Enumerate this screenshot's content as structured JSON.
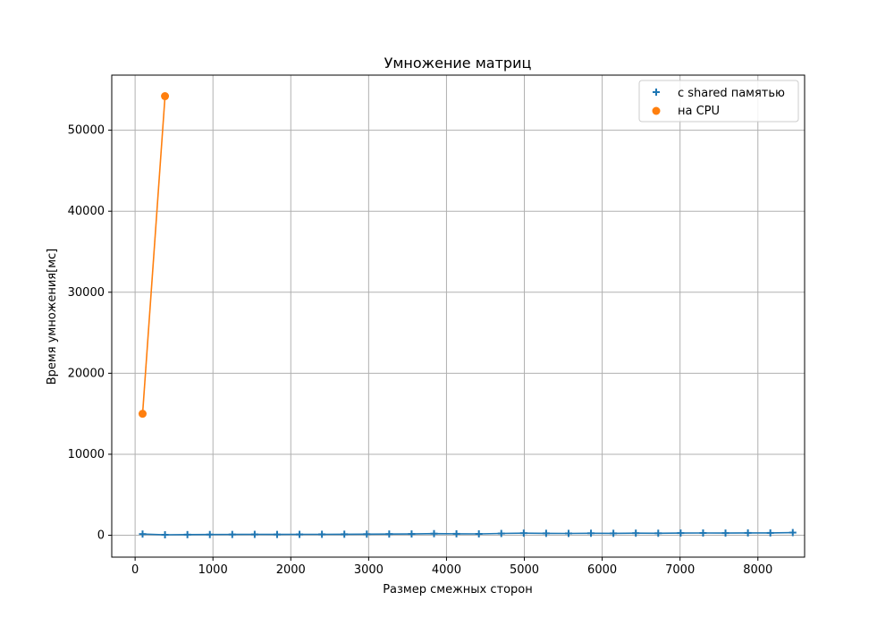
{
  "chart_data": {
    "type": "line",
    "title": "Умножение матриц",
    "xlabel": "Размер смежных сторон",
    "ylabel": "Время умножения[мс]",
    "xlim": [
      -300,
      8600
    ],
    "ylim": [
      -2700,
      56800
    ],
    "xticks": [
      "0",
      "1000",
      "2000",
      "3000",
      "4000",
      "5000",
      "6000",
      "7000",
      "8000"
    ],
    "yticks": [
      "0",
      "10000",
      "20000",
      "30000",
      "40000",
      "50000"
    ],
    "grid": true,
    "legend_position": "top-right",
    "series": [
      {
        "name": "с shared памятью",
        "color": "#1f77b4",
        "marker": "plus",
        "x": [
          96,
          384,
          672,
          960,
          1248,
          1536,
          1824,
          2112,
          2400,
          2688,
          2976,
          3264,
          3552,
          3840,
          4128,
          4416,
          4704,
          4992,
          5280,
          5568,
          5856,
          6144,
          6432,
          6720,
          7008,
          7296,
          7584,
          7872,
          8160,
          8448
        ],
        "y": [
          150,
          60,
          80,
          90,
          100,
          110,
          100,
          110,
          120,
          130,
          140,
          150,
          160,
          200,
          180,
          170,
          220,
          260,
          240,
          230,
          250,
          240,
          260,
          250,
          270,
          280,
          270,
          290,
          290,
          330
        ]
      },
      {
        "name": "на CPU",
        "color": "#ff7f0e",
        "marker": "circle",
        "x": [
          96,
          384
        ],
        "y": [
          15000,
          54200
        ]
      }
    ]
  }
}
